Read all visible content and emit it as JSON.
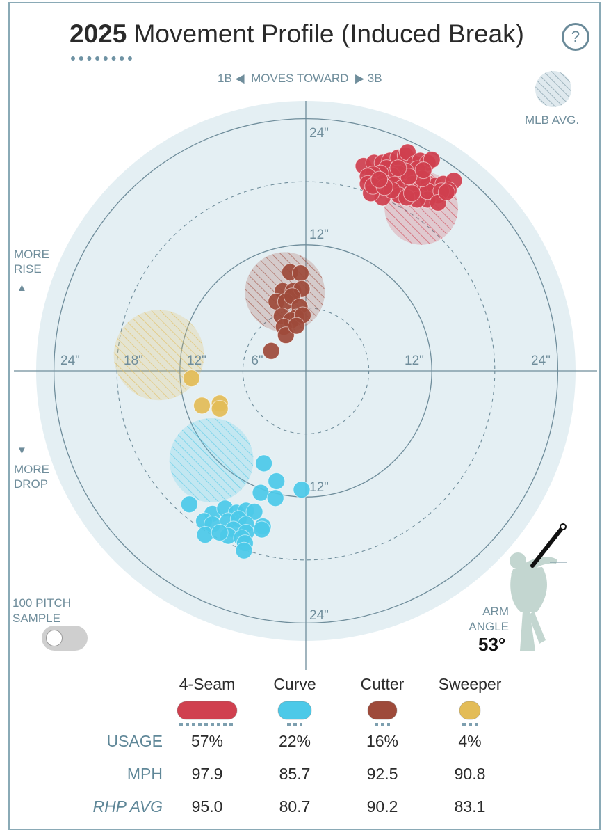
{
  "header": {
    "title_year": "2025",
    "title_rest": " Movement Profile (Induced Break)",
    "help_icon": "?"
  },
  "labels": {
    "moves_toward_left": "1B",
    "moves_toward_mid": "MOVES TOWARD",
    "moves_toward_right": "3B",
    "mlb_avg": "MLB AVG.",
    "more_rise_1": "MORE",
    "more_rise_2": "RISE",
    "more_drop_1": "MORE",
    "more_drop_2": "DROP",
    "sample_1": "100 PITCH",
    "sample_2": "SAMPLE",
    "arm_angle_1": "ARM",
    "arm_angle_2": "ANGLE",
    "arm_angle_value": "53°"
  },
  "icons": {
    "left_arrow": "◀",
    "right_arrow": "▶",
    "up_arrow": "▲",
    "down_arrow": "▼"
  },
  "ring_labels": {
    "top24": "24\"",
    "top12": "12\"",
    "bottom12": "12\"",
    "bottom24": "24\"",
    "left24": "24\"",
    "left18": "18\"",
    "left12": "12\"",
    "left6": "6\"",
    "right12": "12\"",
    "right24": "24\""
  },
  "colors": {
    "4-Seam": "#d0404f",
    "Curve": "#4cc9e8",
    "Cutter": "#9e4a3a",
    "Sweeper": "#e3bc57",
    "background_circle": "#e4eff3",
    "grid": "#6f8d9b"
  },
  "chart_data": {
    "type": "scatter",
    "title": "2025 Movement Profile (Induced Break)",
    "x_unit": "horizontal break (in), toward 3B positive",
    "y_unit": "induced vertical break (in)",
    "xlim": [
      -24,
      24
    ],
    "ylim": [
      -24,
      24
    ],
    "rings": [
      6,
      12,
      18,
      24
    ],
    "mlb_avg": [
      {
        "pitch": "4-Seam",
        "x": 11,
        "y": 15.5,
        "r": 3.5
      },
      {
        "pitch": "Cutter",
        "x": -2,
        "y": 7.5,
        "r": 3.8
      },
      {
        "pitch": "Sweeper",
        "x": -14,
        "y": 1.5,
        "r": 4.3
      },
      {
        "pitch": "Curve",
        "x": -9,
        "y": -8.5,
        "r": 4.0
      }
    ],
    "series": [
      {
        "name": "4-Seam",
        "points": [
          [
            5.5,
            19.5
          ],
          [
            6.5,
            19.8
          ],
          [
            7.3,
            19.8
          ],
          [
            8,
            20
          ],
          [
            7.7,
            19.3
          ],
          [
            8.8,
            20.3
          ],
          [
            9.5,
            20.5
          ],
          [
            9.7,
            20.8
          ],
          [
            10.4,
            19.7
          ],
          [
            10.9,
            20
          ],
          [
            11.6,
            19.8
          ],
          [
            12,
            20.1
          ],
          [
            10.6,
            19.2
          ],
          [
            9.5,
            19
          ],
          [
            8.8,
            18.8
          ],
          [
            8.2,
            18.6
          ],
          [
            7.1,
            18.8
          ],
          [
            6.4,
            18.7
          ],
          [
            5.9,
            18.5
          ],
          [
            5.9,
            17.8
          ],
          [
            7.4,
            17.9
          ],
          [
            8.4,
            17.7
          ],
          [
            9.2,
            17.4
          ],
          [
            10.2,
            17.8
          ],
          [
            10.9,
            17.3
          ],
          [
            11.7,
            17.8
          ],
          [
            12.3,
            17.6
          ],
          [
            13.1,
            17.8
          ],
          [
            14.1,
            18.1
          ],
          [
            13.6,
            17.2
          ],
          [
            12.6,
            16.7
          ],
          [
            11.6,
            16.3
          ],
          [
            10.6,
            16.3
          ],
          [
            8.9,
            16.7
          ],
          [
            7.3,
            16.5
          ],
          [
            6.2,
            16.9
          ],
          [
            6.4,
            17.6
          ],
          [
            8.2,
            17.2
          ],
          [
            9.6,
            16.5
          ],
          [
            11.6,
            17.1
          ],
          [
            12.9,
            17.1
          ],
          [
            11.1,
            18.3
          ],
          [
            9.8,
            18.5
          ],
          [
            7.5,
            17.5
          ],
          [
            10.1,
            16.9
          ],
          [
            12.6,
            16
          ],
          [
            13.4,
            17
          ],
          [
            11.2,
            19.1
          ],
          [
            8.8,
            19.3
          ],
          [
            7,
            18.2
          ]
        ]
      },
      {
        "name": "Cutter",
        "points": [
          [
            -1.5,
            9.4
          ],
          [
            -0.5,
            9.3
          ],
          [
            -2.2,
            7.6
          ],
          [
            -1.2,
            7.6
          ],
          [
            -0.4,
            7.8
          ],
          [
            -2.8,
            6.6
          ],
          [
            -1.9,
            6.6
          ],
          [
            -1.3,
            7.1
          ],
          [
            -0.6,
            6.1
          ],
          [
            -0.9,
            5.1
          ],
          [
            -2.3,
            5.2
          ],
          [
            -1.4,
            4.8
          ],
          [
            -0.3,
            5.3
          ],
          [
            -2.1,
            4.2
          ],
          [
            -1.9,
            3.4
          ],
          [
            -0.9,
            4.3
          ],
          [
            -3.3,
            1.9
          ]
        ]
      },
      {
        "name": "Sweeper",
        "points": [
          [
            -10.9,
            -0.7
          ],
          [
            -9.9,
            -3.3
          ],
          [
            -8.2,
            -3.1
          ],
          [
            -8.2,
            -3.6
          ]
        ]
      },
      {
        "name": "Curve",
        "points": [
          [
            -4,
            -8.8
          ],
          [
            -2.8,
            -10.5
          ],
          [
            -4.3,
            -11.6
          ],
          [
            -2.9,
            -12.1
          ],
          [
            -0.4,
            -11.3
          ],
          [
            -11.1,
            -12.7
          ],
          [
            -8.9,
            -13.6
          ],
          [
            -7.7,
            -13.1
          ],
          [
            -6.6,
            -13.5
          ],
          [
            -5.7,
            -13.3
          ],
          [
            -4.9,
            -13.4
          ],
          [
            -9.7,
            -14.3
          ],
          [
            -8.9,
            -14.6
          ],
          [
            -7.4,
            -14.3
          ],
          [
            -6.4,
            -14.1
          ],
          [
            -5.7,
            -14.6
          ],
          [
            -4.1,
            -14.8
          ],
          [
            -6.9,
            -15.1
          ],
          [
            -5.7,
            -15.4
          ],
          [
            -4.2,
            -15.1
          ],
          [
            -9.6,
            -15.6
          ],
          [
            -7.4,
            -15.7
          ],
          [
            -6.1,
            -15.9
          ],
          [
            -5.8,
            -16.4
          ],
          [
            -5.9,
            -17.1
          ],
          [
            -8.2,
            -15.4
          ]
        ]
      }
    ]
  },
  "legend": [
    {
      "name": "4-Seam",
      "usage": "57%",
      "mph": "97.9",
      "rhp_avg": "95.0"
    },
    {
      "name": "Curve",
      "usage": "22%",
      "mph": "85.7",
      "rhp_avg": "80.7"
    },
    {
      "name": "Cutter",
      "usage": "16%",
      "mph": "92.5",
      "rhp_avg": "90.2"
    },
    {
      "name": "Sweeper",
      "usage": "4%",
      "mph": "90.8",
      "rhp_avg": "83.1"
    }
  ],
  "table": {
    "usage_label": "USAGE",
    "mph_label": "MPH",
    "rhp_avg_label": "RHP AVG"
  }
}
